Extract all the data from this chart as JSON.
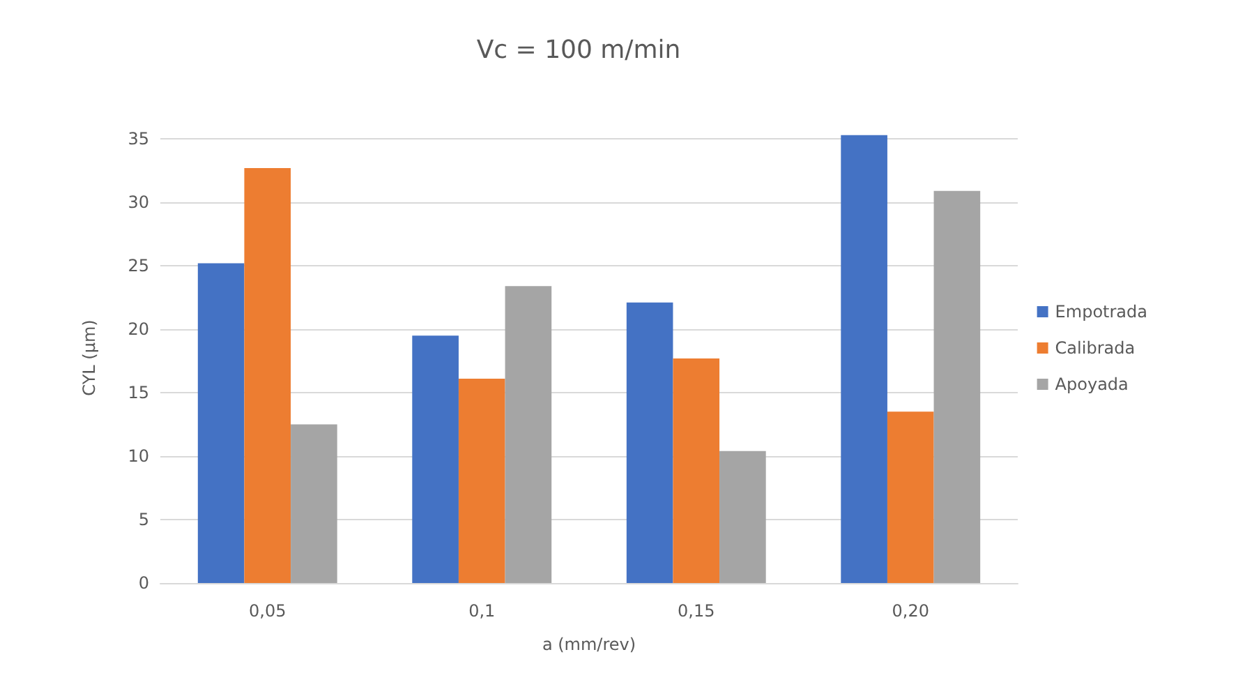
{
  "chart_data": {
    "type": "bar",
    "title": "Vc = 100 m/min",
    "xlabel": "a (mm/rev)",
    "ylabel": "CYL (µm)",
    "categories": [
      "0,05",
      "0,1",
      "0,15",
      "0,20"
    ],
    "series": [
      {
        "name": "Empotrada",
        "color": "#4472c4",
        "values": [
          25.2,
          19.5,
          22.1,
          35.3
        ]
      },
      {
        "name": "Calibrada",
        "color": "#ed7d31",
        "values": [
          32.7,
          16.1,
          17.7,
          13.5
        ]
      },
      {
        "name": "Apoyada",
        "color": "#a5a5a5",
        "values": [
          12.5,
          23.4,
          10.4,
          30.9
        ]
      }
    ],
    "ylim": [
      0,
      35.5
    ],
    "yticks": [
      0,
      5,
      10,
      15,
      20,
      25,
      30,
      35
    ],
    "grid": "y",
    "legend": "right"
  }
}
